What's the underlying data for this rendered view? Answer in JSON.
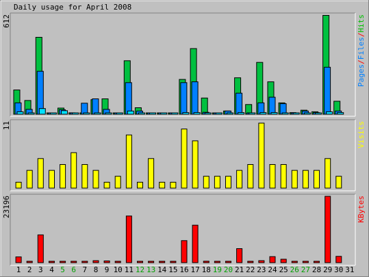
{
  "chart_data": {
    "type": "bar",
    "title": "Daily usage for April 2008",
    "categories": [
      "1",
      "2",
      "3",
      "4",
      "5",
      "6",
      "7",
      "8",
      "9",
      "10",
      "11",
      "12",
      "13",
      "14",
      "15",
      "16",
      "17",
      "18",
      "19",
      "20",
      "21",
      "22",
      "23",
      "24",
      "25",
      "26",
      "27",
      "28",
      "29",
      "30",
      "31"
    ],
    "weekend_days": [
      "5",
      "6",
      "12",
      "13",
      "19",
      "20",
      "26",
      "27"
    ],
    "panels": [
      {
        "id": "hits-panel",
        "max_label": "612",
        "ymax": 612,
        "legend": [
          {
            "text": "Pages",
            "color": "#0080ff"
          },
          {
            "text": "/",
            "color": "#ff0000"
          },
          {
            "text": "Files",
            "color": "#0080ff"
          },
          {
            "text": "/",
            "color": "#ff0000"
          },
          {
            "text": "Hits",
            "color": "#00c000"
          }
        ],
        "series": [
          {
            "name": "Hits",
            "color": "#00c040",
            "values": [
              150,
              85,
              475,
              5,
              38,
              9,
              5,
              90,
              95,
              5,
              330,
              40,
              5,
              5,
              5,
              215,
              405,
              100,
              5,
              20,
              225,
              60,
              320,
              200,
              70,
              10,
              25,
              15,
              610,
              80,
              0
            ]
          },
          {
            "name": "Files",
            "color": "#0080ff",
            "values": [
              70,
              30,
              265,
              5,
              28,
              7,
              68,
              95,
              30,
              5,
              195,
              20,
              5,
              5,
              5,
              195,
              200,
              12,
              5,
              20,
              130,
              5,
              70,
              105,
              65,
              5,
              20,
              10,
              290,
              20,
              0
            ]
          },
          {
            "name": "Pages",
            "color": "#00e0ff",
            "values": [
              15,
              8,
              35,
              2,
              22,
              3,
              5,
              5,
              5,
              2,
              20,
              4,
              2,
              2,
              2,
              10,
              10,
              5,
              2,
              5,
              10,
              2,
              10,
              10,
              5,
              2,
              5,
              5,
              15,
              10,
              0
            ]
          }
        ]
      },
      {
        "id": "visits-panel",
        "max_label": "11",
        "ymax": 11,
        "legend": [
          {
            "text": "Visits",
            "color": "#ffff00"
          }
        ],
        "series": [
          {
            "name": "Visits",
            "color": "#ffff00",
            "values": [
              1,
              3,
              5,
              3,
              4,
              6,
              4,
              3,
              1,
              2,
              9,
              1,
              5,
              1,
              1,
              10,
              8,
              2,
              2,
              2,
              3,
              4,
              11,
              4,
              4,
              3,
              3,
              3,
              5,
              2,
              0
            ]
          }
        ]
      },
      {
        "id": "kbytes-panel",
        "max_label": "23196",
        "ymax": 23196,
        "legend": [
          {
            "text": "KBytes",
            "color": "#ff0000"
          }
        ],
        "series": [
          {
            "name": "KBytes",
            "color": "#ff0000",
            "values": [
              2000,
              200,
              9700,
              200,
              200,
              200,
              200,
              700,
              600,
              200,
              16300,
              200,
              200,
              200,
              200,
              7700,
              13100,
              500,
              200,
              300,
              4900,
              300,
              700,
              2100,
              1200,
              200,
              200,
              200,
              23196,
              2200,
              0
            ]
          }
        ]
      }
    ]
  }
}
